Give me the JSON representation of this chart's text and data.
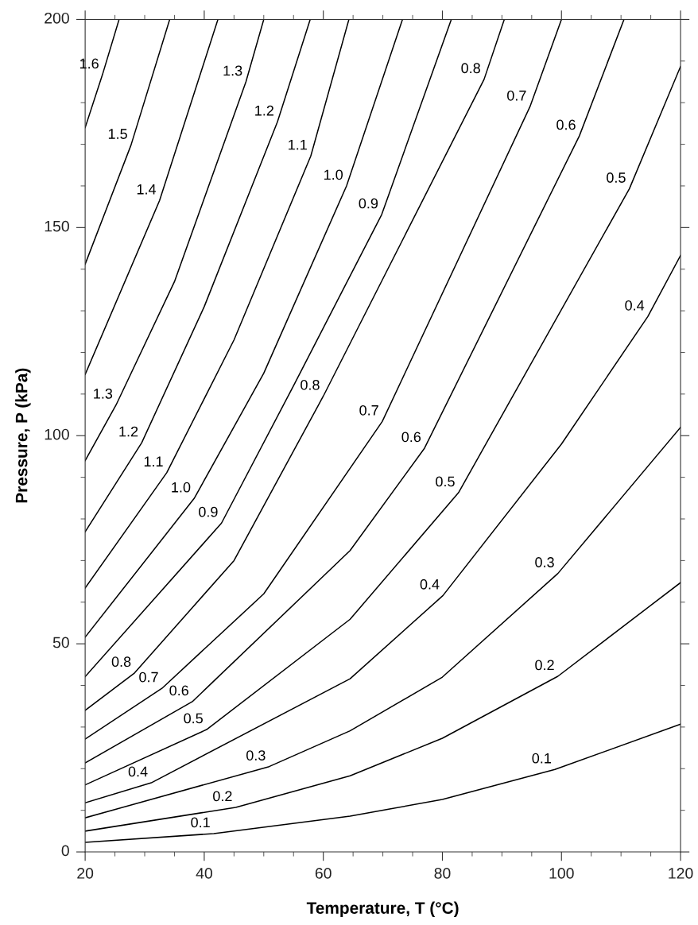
{
  "chart_data": {
    "type": "line",
    "xlabel": "Temperature, T (°C)",
    "ylabel": "Pressure, P (kPa)",
    "xlim": [
      20,
      120
    ],
    "ylim": [
      0,
      200
    ],
    "xticks": [
      20,
      {
        "value": 25,
        "label": null
      },
      {
        "value": 30,
        "label": null
      },
      {
        "value": 35,
        "label": null
      },
      40,
      {
        "value": 45,
        "label": null
      },
      {
        "value": 50,
        "label": null
      },
      {
        "value": 55,
        "label": null
      },
      60,
      {
        "value": 65,
        "label": null
      },
      {
        "value": 70,
        "label": null
      },
      {
        "value": 75,
        "label": null
      },
      80,
      {
        "value": 85,
        "label": null
      },
      {
        "value": 90,
        "label": null
      },
      {
        "value": 95,
        "label": null
      },
      100,
      {
        "value": 105,
        "label": null
      },
      {
        "value": 110,
        "label": null
      },
      {
        "value": 115,
        "label": null
      },
      120
    ],
    "yticks": [
      0,
      {
        "value": 10,
        "label": null
      },
      {
        "value": 20,
        "label": null
      },
      {
        "value": 30,
        "label": null
      },
      {
        "value": 40,
        "label": null
      },
      50,
      {
        "value": 60,
        "label": null
      },
      {
        "value": 70,
        "label": null
      },
      {
        "value": 80,
        "label": null
      },
      {
        "value": 90,
        "label": null
      },
      100,
      {
        "value": 110,
        "label": null
      },
      {
        "value": 120,
        "label": null
      },
      {
        "value": 130,
        "label": null
      },
      {
        "value": 140,
        "label": null
      },
      150,
      {
        "value": 160,
        "label": null
      },
      {
        "value": 170,
        "label": null
      },
      {
        "value": 180,
        "label": null
      },
      {
        "value": 190,
        "label": null
      },
      200
    ],
    "series": [
      {
        "color": "#000000",
        "x": [
          20,
          41.6,
          64.5,
          80,
          98.9,
          120
        ],
        "values": [
          2.3,
          4.4,
          8.6,
          12.6,
          19.8,
          30.7
        ]
      },
      {
        "color": "#000000",
        "x": [
          20,
          45.3,
          64.5,
          80,
          99.4,
          120
        ],
        "values": [
          5.0,
          10.7,
          18.3,
          27.3,
          42.2,
          64.7
        ]
      },
      {
        "color": "#000000",
        "x": [
          20,
          50.9,
          64.5,
          80,
          99.4,
          120
        ],
        "values": [
          8.2,
          20.5,
          29.1,
          42,
          66.9,
          102
        ]
      },
      {
        "color": "#000000",
        "x": [
          20,
          31.1,
          64.5,
          80.1,
          100,
          114.5,
          120
        ],
        "values": [
          11.8,
          16.6,
          41.6,
          61.6,
          98,
          128.6,
          143.3
        ]
      },
      {
        "color": "#000000",
        "x": [
          20,
          40.4,
          64.5,
          82.7,
          111.4,
          120
        ],
        "values": [
          16.1,
          29.4,
          55.9,
          86.3,
          159.3,
          188.7
        ]
      },
      {
        "color": "#000000",
        "x": [
          20,
          38.0,
          64.5,
          77.0,
          103.0,
          110.5
        ],
        "values": [
          21.4,
          36.1,
          72.4,
          97.0,
          172,
          200
        ]
      },
      {
        "color": "#000000",
        "x": [
          20,
          32.9,
          50,
          69.9,
          94.7,
          100
        ],
        "values": [
          27.1,
          39.3,
          62,
          103.4,
          179,
          200
        ]
      },
      {
        "color": "#000000",
        "x": [
          20,
          28.3,
          45,
          60,
          87.0,
          90.4
        ],
        "values": [
          34.0,
          43.0,
          70,
          109.5,
          185.6,
          200
        ]
      },
      {
        "color": "#000000",
        "x": [
          20,
          42.9,
          55,
          69.8,
          81.5
        ],
        "values": [
          42.1,
          79,
          112,
          153.1,
          200
        ]
      },
      {
        "color": "#000000",
        "x": [
          20,
          38.3,
          50,
          63.9,
          73.3
        ],
        "values": [
          51.6,
          84.9,
          115,
          160,
          200
        ]
      },
      {
        "color": "#000000",
        "x": [
          20,
          33.7,
          45,
          57.9,
          64.3
        ],
        "values": [
          63.4,
          91.1,
          123,
          167.2,
          200
        ]
      },
      {
        "color": "#000000",
        "x": [
          20,
          29.5,
          40,
          52.3,
          57.8
        ],
        "values": [
          76.9,
          98.3,
          131,
          175.4,
          200
        ]
      },
      {
        "color": "#000000",
        "x": [
          20,
          25.2,
          35,
          47.0,
          50.0
        ],
        "values": [
          94,
          107.4,
          137,
          185,
          200
        ]
      },
      {
        "color": "#000000",
        "x": [
          20,
          32.5,
          42.3
        ],
        "values": [
          114.7,
          156.5,
          200
        ]
      },
      {
        "color": "#000000",
        "x": [
          20,
          27.7,
          34.2
        ],
        "values": [
          141.2,
          169.8,
          200
        ]
      },
      {
        "color": "#000000",
        "x": [
          20,
          22.9,
          25.7
        ],
        "values": [
          174,
          186.7,
          200
        ]
      }
    ],
    "annotations": [
      {
        "text": "1.6",
        "x": 22.9,
        "y": 186.7
      },
      {
        "text": "1.5",
        "x": 27.7,
        "y": 169.8
      },
      {
        "text": "1.4",
        "x": 32.5,
        "y": 156.5
      },
      {
        "text": "1.3",
        "x": 47.0,
        "y": 185
      },
      {
        "text": "1.2",
        "x": 52.3,
        "y": 175.4
      },
      {
        "text": "1.1",
        "x": 57.9,
        "y": 167.2
      },
      {
        "text": "1.0",
        "x": 63.9,
        "y": 160
      },
      {
        "text": "0.9",
        "x": 69.8,
        "y": 153.1
      },
      {
        "text": "0.8",
        "x": 87.0,
        "y": 185.6
      },
      {
        "text": "0.7",
        "x": 94.7,
        "y": 179
      },
      {
        "text": "0.6",
        "x": 103.0,
        "y": 172
      },
      {
        "text": "0.5",
        "x": 111.4,
        "y": 159.3
      },
      {
        "text": "0.4",
        "x": 114.5,
        "y": 128.6
      },
      {
        "text": "1.3",
        "x": 25.2,
        "y": 107.4
      },
      {
        "text": "1.2",
        "x": 29.5,
        "y": 98.3
      },
      {
        "text": "1.1",
        "x": 33.7,
        "y": 91.1
      },
      {
        "text": "1.0",
        "x": 38.3,
        "y": 84.9
      },
      {
        "text": "0.9",
        "x": 42.9,
        "y": 79
      },
      {
        "text": "0.8",
        "x": 60,
        "y": 109.5
      },
      {
        "text": "0.7",
        "x": 69.9,
        "y": 103.4
      },
      {
        "text": "0.6",
        "x": 77.0,
        "y": 97.0
      },
      {
        "text": "0.5",
        "x": 82.7,
        "y": 86.3
      },
      {
        "text": "0.4",
        "x": 80.1,
        "y": 61.6
      },
      {
        "text": "0.3",
        "x": 99.4,
        "y": 66.9
      },
      {
        "text": "0.2",
        "x": 99.4,
        "y": 42.2
      },
      {
        "text": "0.1",
        "x": 98.9,
        "y": 19.8
      },
      {
        "text": "0.8",
        "x": 28.3,
        "y": 43.0
      },
      {
        "text": "0.7",
        "x": 32.9,
        "y": 39.3
      },
      {
        "text": "0.6",
        "x": 38.0,
        "y": 36.1
      },
      {
        "text": "0.5",
        "x": 40.4,
        "y": 29.4
      },
      {
        "text": "0.4",
        "x": 31.1,
        "y": 16.6
      },
      {
        "text": "0.3",
        "x": 50.9,
        "y": 20.5
      },
      {
        "text": "0.2",
        "x": 45.3,
        "y": 10.7
      },
      {
        "text": "0.1",
        "x": 41.6,
        "y": 4.4
      }
    ]
  }
}
